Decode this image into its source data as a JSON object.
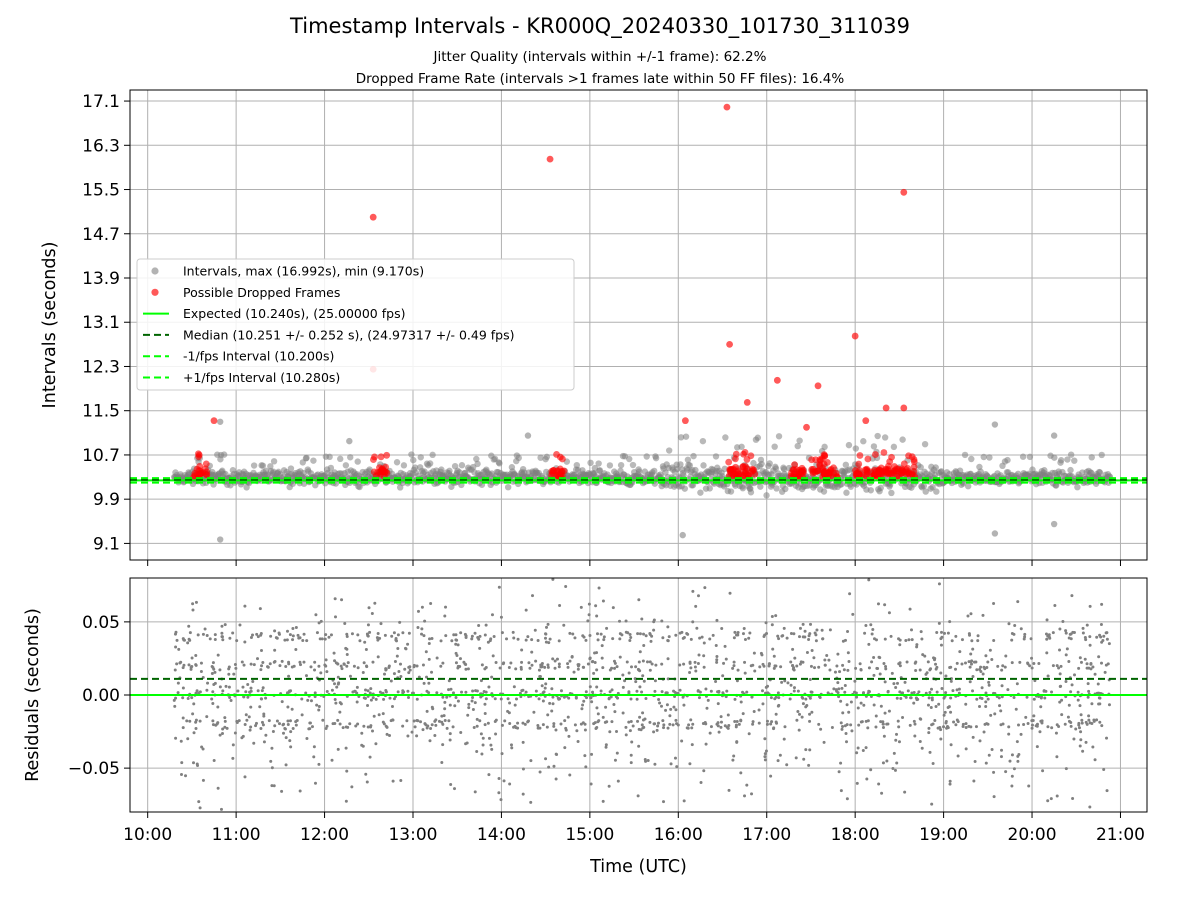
{
  "chart_data": [
    {
      "type": "scatter",
      "title": "Timestamp Intervals - KR000Q_20240330_101730_311039",
      "subtitle_lines": [
        "Jitter Quality (intervals within +/-1 frame): 62.2%",
        "Dropped Frame Rate (intervals >1 frames late within 50 FF files): 16.4%"
      ],
      "ylabel": "Intervals (seconds)",
      "xlabel": "",
      "ylim": [
        8.8,
        17.3
      ],
      "yticks": [
        "9.1",
        "9.9",
        "10.7",
        "11.5",
        "12.3",
        "13.1",
        "13.9",
        "14.7",
        "15.5",
        "16.3",
        "17.1"
      ],
      "ytick_values": [
        9.1,
        9.9,
        10.7,
        11.5,
        12.3,
        13.1,
        13.9,
        14.7,
        15.5,
        16.3,
        17.1
      ],
      "grid": true,
      "legend_placement": "center-left",
      "legend": [
        "Intervals, max (16.992s), min (9.170s)",
        "Possible Dropped Frames",
        "Expected (10.240s), (25.00000 fps)",
        "Median (10.251 +/- 0.252 s), (24.97317 +/- 0.49 fps)",
        "-1/fps Interval (10.200s)",
        "+1/fps Interval (10.280s)"
      ],
      "reference_lines": {
        "expected": 10.24,
        "median": 10.251,
        "minus_one_fps": 10.2,
        "plus_one_fps": 10.28
      },
      "notable_dropped_points": [
        {
          "x": 10.75,
          "y": 11.32
        },
        {
          "x": 12.55,
          "y": 15.0
        },
        {
          "x": 12.55,
          "y": 12.25
        },
        {
          "x": 14.55,
          "y": 16.05
        },
        {
          "x": 16.08,
          "y": 11.32
        },
        {
          "x": 16.55,
          "y": 16.99
        },
        {
          "x": 16.58,
          "y": 12.7
        },
        {
          "x": 16.78,
          "y": 11.65
        },
        {
          "x": 17.12,
          "y": 12.05
        },
        {
          "x": 17.58,
          "y": 11.95
        },
        {
          "x": 18.0,
          "y": 12.85
        },
        {
          "x": 18.55,
          "y": 15.45
        },
        {
          "x": 18.35,
          "y": 11.55
        },
        {
          "x": 18.55,
          "y": 11.55
        },
        {
          "x": 18.12,
          "y": 11.32
        },
        {
          "x": 17.45,
          "y": 11.2
        }
      ],
      "notable_interval_points": [
        {
          "x": 10.82,
          "y": 9.17
        },
        {
          "x": 10.82,
          "y": 11.3
        },
        {
          "x": 12.28,
          "y": 10.95
        },
        {
          "x": 14.3,
          "y": 11.05
        },
        {
          "x": 16.05,
          "y": 9.25
        },
        {
          "x": 19.58,
          "y": 11.25
        },
        {
          "x": 20.25,
          "y": 11.05
        },
        {
          "x": 20.25,
          "y": 9.45
        },
        {
          "x": 19.58,
          "y": 9.28
        }
      ],
      "dropped_clusters_x": [
        10.6,
        12.63,
        14.63,
        16.65,
        16.8,
        17.35,
        17.58,
        17.72,
        18.08,
        18.25,
        18.42,
        18.6
      ],
      "data_range_x": [
        10.3,
        20.88
      ],
      "typical_interval_range": [
        9.9,
        10.6
      ]
    },
    {
      "type": "scatter",
      "ylabel": "Residuals (seconds)",
      "xlabel": "Time (UTC)",
      "ylim": [
        -0.08,
        0.08
      ],
      "yticks": [
        "−0.05",
        "0.00",
        "0.05"
      ],
      "ytick_values": [
        -0.05,
        0.0,
        0.05
      ],
      "xlim": [
        9.8,
        21.3
      ],
      "xticks": [
        "10:00",
        "11:00",
        "12:00",
        "13:00",
        "14:00",
        "15:00",
        "16:00",
        "17:00",
        "18:00",
        "19:00",
        "20:00",
        "21:00"
      ],
      "xtick_values": [
        10,
        11,
        12,
        13,
        14,
        15,
        16,
        17,
        18,
        19,
        20,
        21
      ],
      "grid": true,
      "reference_lines": {
        "expected": 0.0,
        "median": 0.011
      },
      "data_range_x": [
        10.3,
        20.88
      ],
      "residual_bands": [
        0.0,
        0.02,
        0.04,
        -0.02
      ],
      "residual_spread": [
        -0.08,
        0.08
      ]
    }
  ],
  "colors": {
    "interval_points": "#808080",
    "dropped_points": "#ff0000",
    "expected_line": "#00ff00",
    "median_line": "#006400",
    "fps_lines": "#00ff00",
    "grid": "#b0b0b0"
  }
}
